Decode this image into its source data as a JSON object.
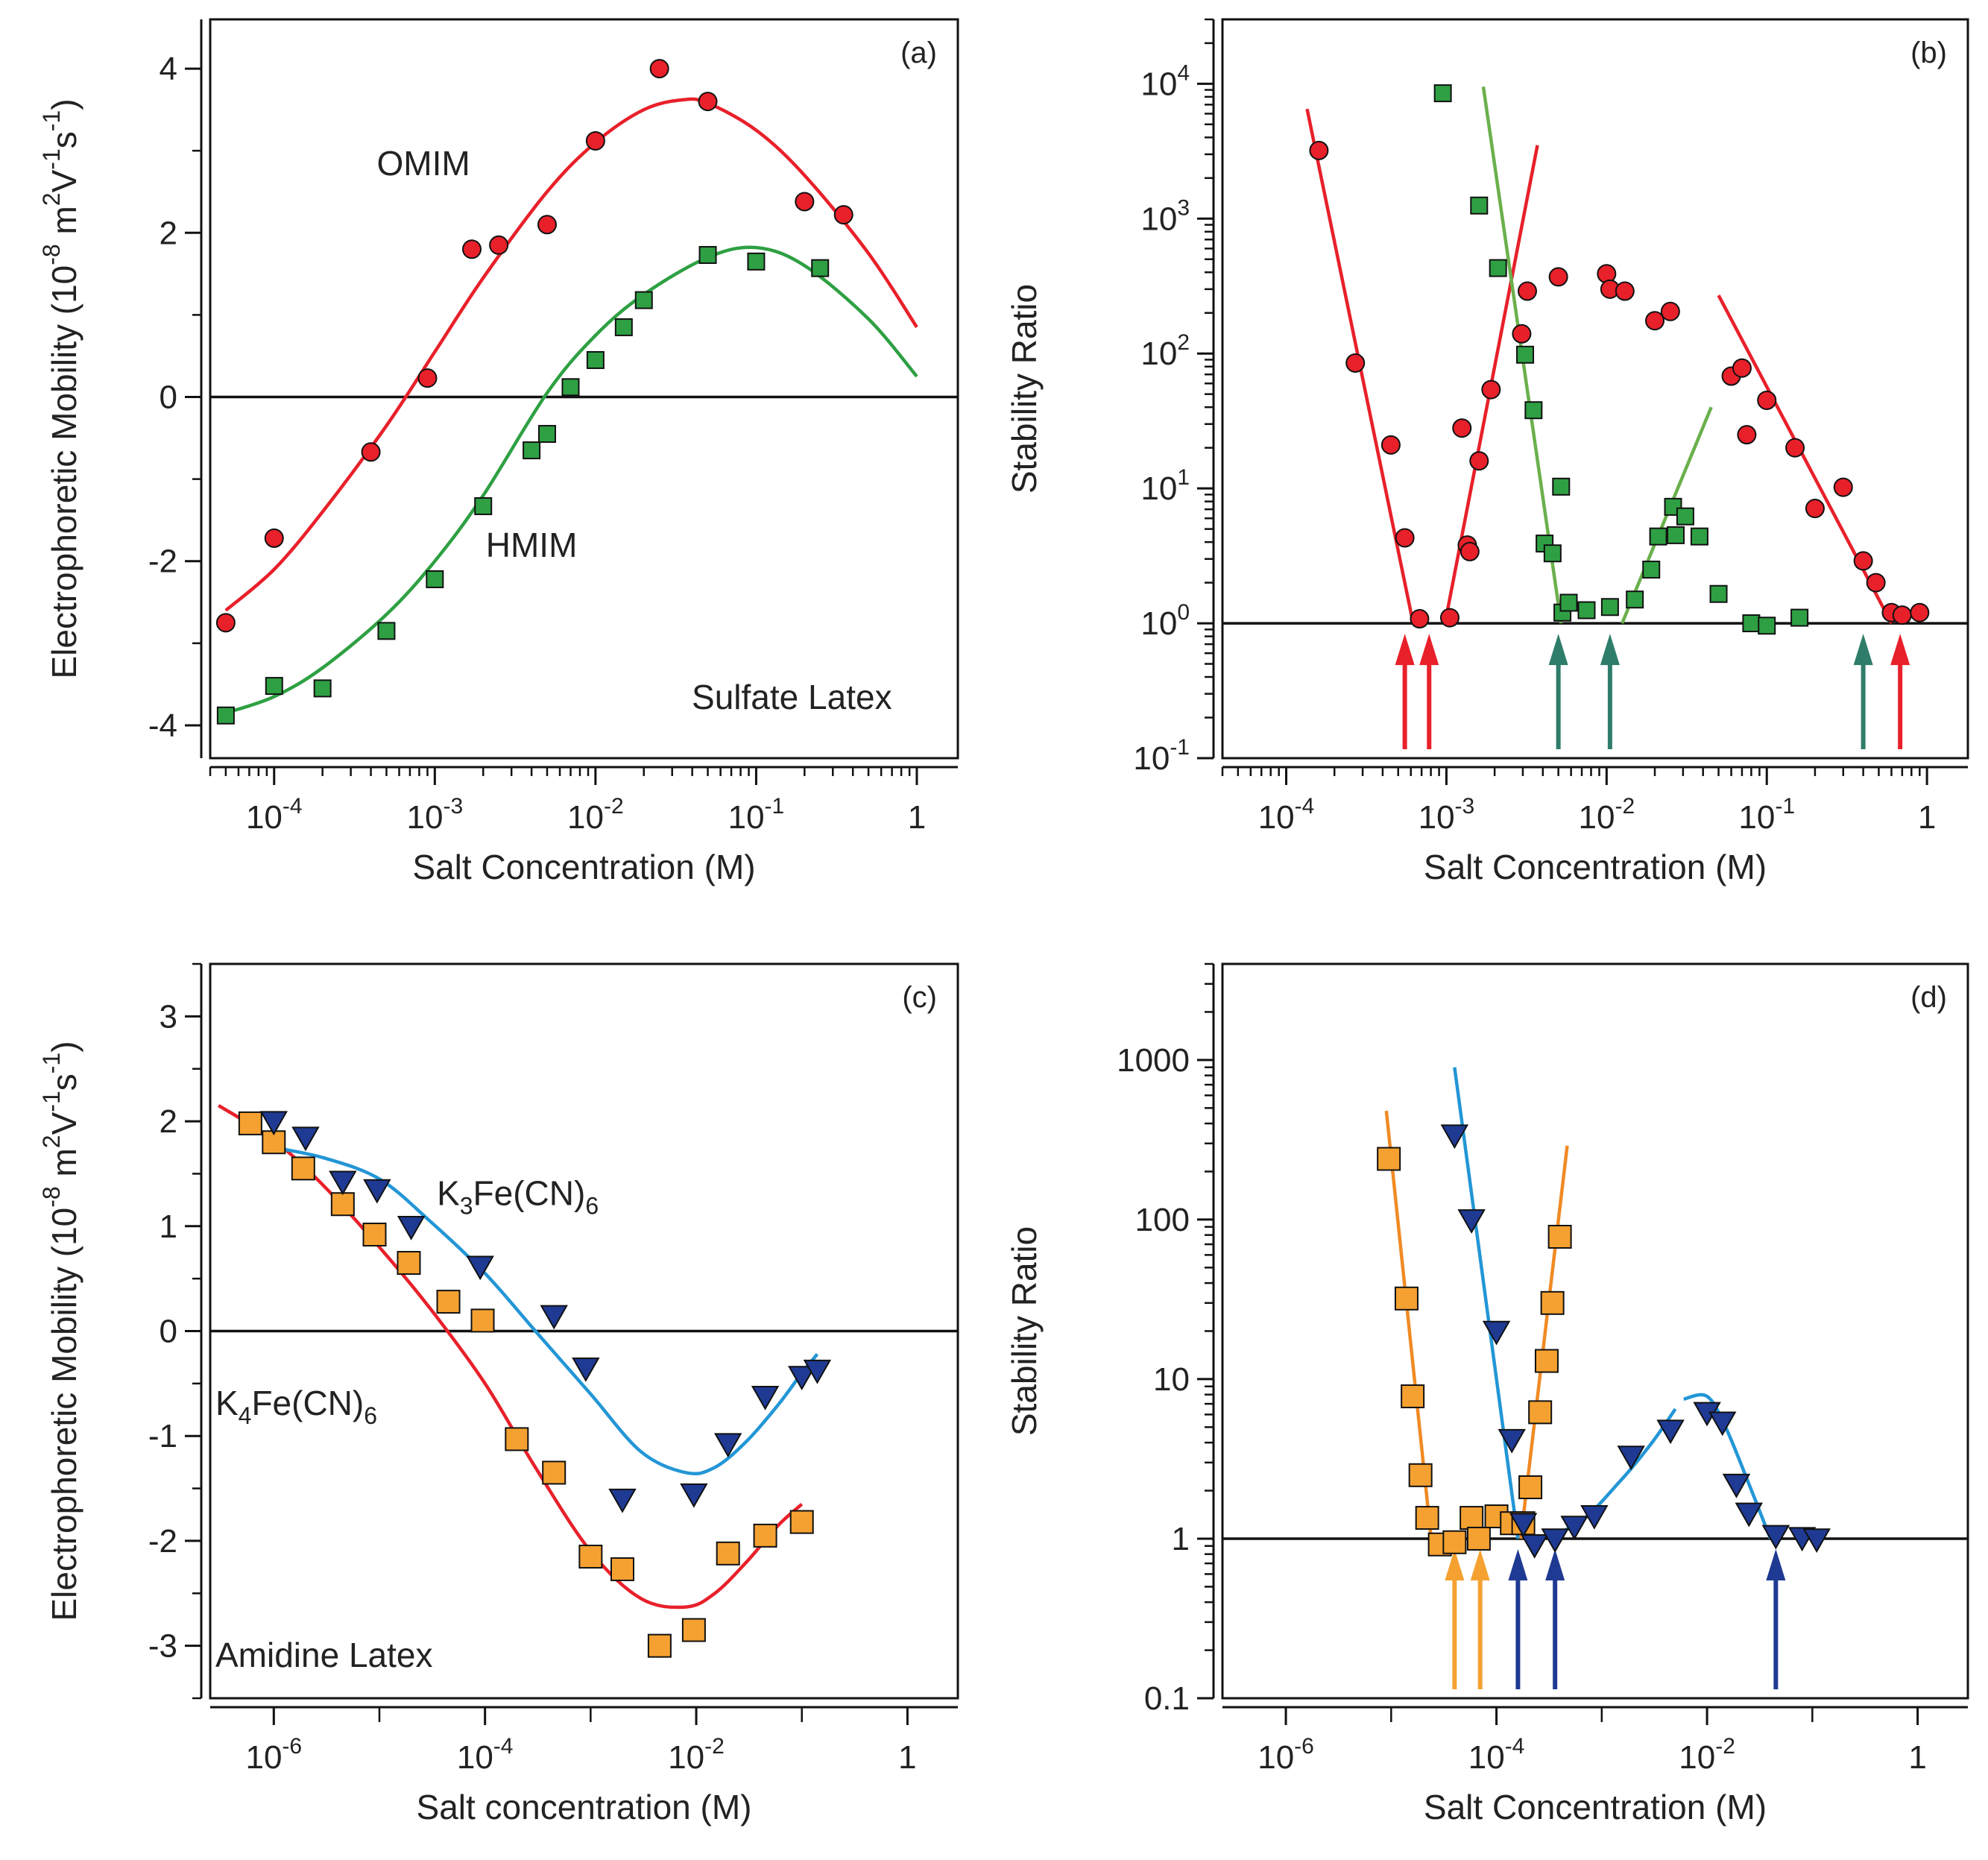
{
  "chart_data": [
    {
      "id": "a",
      "type": "scatter",
      "panel_label": "(a)",
      "xscale": "log",
      "xlim": [
        4e-05,
        1.8
      ],
      "ylim": [
        -4.4,
        4.6
      ],
      "xlabel": "Salt Concentration (M)",
      "ylabel_parts": [
        "Electrophoretic Mobility (10",
        "-8",
        " m",
        "2",
        "V",
        "-1",
        "s",
        "-1",
        ")"
      ],
      "x_ticks": [
        {
          "value": 0.0001,
          "base": "10",
          "exp": "-4"
        },
        {
          "value": 0.001,
          "base": "10",
          "exp": "-3"
        },
        {
          "value": 0.01,
          "base": "10",
          "exp": "-2"
        },
        {
          "value": 0.1,
          "base": "10",
          "exp": "-1"
        },
        {
          "value": 1,
          "base": "1",
          "exp": ""
        }
      ],
      "y_ticks": [
        {
          "value": -4,
          "label": "-4"
        },
        {
          "value": -2,
          "label": "-2"
        },
        {
          "value": 0,
          "label": "0"
        },
        {
          "value": 2,
          "label": "2"
        },
        {
          "value": 4,
          "label": "4"
        }
      ],
      "reference_lines": [
        {
          "axis": "y",
          "value": 0
        }
      ],
      "annotations": [
        {
          "text": "OMIM",
          "x": 0.00085,
          "y": 2.7,
          "anchor": "middle"
        },
        {
          "text": "HMIM",
          "x": 0.004,
          "y": -1.95,
          "anchor": "middle"
        },
        {
          "text": "Sulfate Latex",
          "x": 0.7,
          "y": -3.8,
          "anchor": "end"
        }
      ],
      "series": [
        {
          "name": "OMIM",
          "color": "#e8202a",
          "marker": "circle",
          "x": [
            5e-05,
            0.0001,
            0.0004,
            0.0009,
            0.0017,
            0.0025,
            0.005,
            0.01,
            0.025,
            0.05,
            0.2,
            0.35
          ],
          "y": [
            -2.75,
            -1.72,
            -0.67,
            0.23,
            1.8,
            1.85,
            2.1,
            3.12,
            4.0,
            3.6,
            2.38,
            2.22
          ]
        },
        {
          "name": "HMIM",
          "color": "#2ea043",
          "marker": "square",
          "x": [
            5e-05,
            0.0001,
            0.0002,
            0.0005,
            0.001,
            0.002,
            0.004,
            0.005,
            0.007,
            0.01,
            0.015,
            0.02,
            0.05,
            0.1,
            0.25
          ],
          "y": [
            -3.88,
            -3.52,
            -3.55,
            -2.85,
            -2.22,
            -1.33,
            -0.65,
            -0.45,
            0.12,
            0.45,
            0.85,
            1.18,
            1.73,
            1.65,
            1.57
          ]
        }
      ],
      "fits": [
        {
          "name": "OMIM fit",
          "color": "#e8202a",
          "x": [
            5e-05,
            0.0001,
            0.0002,
            0.0005,
            0.001,
            0.002,
            0.005,
            0.01,
            0.02,
            0.035,
            0.05,
            0.1,
            0.2,
            0.5,
            1
          ],
          "y": [
            -2.6,
            -2.1,
            -1.4,
            -0.35,
            0.55,
            1.45,
            2.5,
            3.1,
            3.5,
            3.62,
            3.58,
            3.25,
            2.7,
            1.75,
            0.85
          ]
        },
        {
          "name": "HMIM fit",
          "color": "#2ea043",
          "x": [
            5e-05,
            0.0001,
            0.0002,
            0.0005,
            0.001,
            0.002,
            0.005,
            0.01,
            0.02,
            0.05,
            0.1,
            0.2,
            0.5,
            1
          ],
          "y": [
            -3.85,
            -3.65,
            -3.3,
            -2.65,
            -2.0,
            -1.2,
            0.05,
            0.75,
            1.25,
            1.7,
            1.82,
            1.6,
            0.95,
            0.25
          ]
        }
      ]
    },
    {
      "id": "b",
      "type": "scatter",
      "panel_label": "(b)",
      "xscale": "log",
      "yscale": "log",
      "xlim": [
        4e-05,
        1.8
      ],
      "ylim": [
        0.1,
        30000
      ],
      "xlabel": "Salt Concentration (M)",
      "ylabel_parts": [
        "Stability Ratio"
      ],
      "x_ticks": [
        {
          "value": 0.0001,
          "base": "10",
          "exp": "-4"
        },
        {
          "value": 0.001,
          "base": "10",
          "exp": "-3"
        },
        {
          "value": 0.01,
          "base": "10",
          "exp": "-2"
        },
        {
          "value": 0.1,
          "base": "10",
          "exp": "-1"
        },
        {
          "value": 1,
          "base": "1",
          "exp": ""
        }
      ],
      "y_ticks": [
        {
          "value": 0.1,
          "base": "10",
          "exp": "-1"
        },
        {
          "value": 1,
          "base": "10",
          "exp": "0"
        },
        {
          "value": 10,
          "base": "10",
          "exp": "1"
        },
        {
          "value": 100,
          "base": "10",
          "exp": "2"
        },
        {
          "value": 1000,
          "base": "10",
          "exp": "3"
        },
        {
          "value": 10000,
          "base": "10",
          "exp": "4"
        }
      ],
      "reference_lines": [
        {
          "axis": "y",
          "value": 1
        }
      ],
      "arrows": [
        {
          "x": 0.00055,
          "color": "#e8202a"
        },
        {
          "x": 0.00078,
          "color": "#e8202a"
        },
        {
          "x": 0.005,
          "color": "#2e7d6a"
        },
        {
          "x": 0.0105,
          "color": "#2e7d6a"
        },
        {
          "x": 0.4,
          "color": "#2e7d6a"
        },
        {
          "x": 0.68,
          "color": "#e8202a"
        }
      ],
      "series": [
        {
          "name": "OMIM",
          "color": "#e8202a",
          "marker": "circle",
          "x": [
            0.00016,
            0.00027,
            0.00045,
            0.00055,
            0.00068,
            0.00105,
            0.00125,
            0.00135,
            0.0014,
            0.0016,
            0.0019,
            0.00295,
            0.0032,
            0.005,
            0.01,
            0.0105,
            0.013,
            0.02,
            0.025,
            0.06,
            0.07,
            0.075,
            0.1,
            0.15,
            0.2,
            0.3,
            0.4,
            0.48,
            0.6,
            0.7,
            0.9
          ],
          "y": [
            3200,
            85,
            21,
            4.3,
            1.08,
            1.1,
            28,
            3.8,
            3.4,
            16,
            54,
            140,
            290,
            370,
            390,
            300,
            290,
            175,
            205,
            68,
            78,
            25,
            45,
            20,
            7.1,
            10.2,
            2.9,
            2.0,
            1.2,
            1.15,
            1.2
          ]
        },
        {
          "name": "HMIM",
          "color": "#2ea043",
          "marker": "square",
          "x": [
            0.00095,
            0.0016,
            0.0021,
            0.0031,
            0.0035,
            0.0041,
            0.0046,
            0.0052,
            0.0053,
            0.0058,
            0.0075,
            0.0105,
            0.015,
            0.019,
            0.021,
            0.026,
            0.027,
            0.031,
            0.038,
            0.05,
            0.08,
            0.1,
            0.16
          ],
          "y": [
            8500,
            1250,
            430,
            98,
            38,
            3.9,
            3.3,
            10.3,
            1.2,
            1.42,
            1.25,
            1.32,
            1.5,
            2.5,
            4.4,
            7.3,
            4.5,
            6.2,
            4.4,
            1.65,
            1.0,
            0.96,
            1.1
          ]
        }
      ],
      "fits": [
        {
          "name": "OMIM fast side",
          "color": "#e8202a",
          "x": [
            0.000135,
            0.00062
          ],
          "y": [
            6500,
            1.0
          ]
        },
        {
          "name": "OMIM reversal side",
          "color": "#e8202a",
          "x": [
            0.00098,
            0.0037
          ],
          "y": [
            1.0,
            3500
          ]
        },
        {
          "name": "OMIM high salt",
          "color": "#e8202a",
          "x": [
            0.05,
            0.6
          ],
          "y": [
            270,
            1.0
          ]
        },
        {
          "name": "HMIM fast side",
          "color": "#6ab04c",
          "x": [
            0.0017,
            0.0052
          ],
          "y": [
            9500,
            1.0
          ]
        },
        {
          "name": "HMIM second rise",
          "color": "#6ab04c",
          "x": [
            0.0125,
            0.045
          ],
          "y": [
            1.0,
            40
          ]
        }
      ]
    },
    {
      "id": "c",
      "type": "scatter",
      "panel_label": "(c)",
      "xscale": "log",
      "xlim": [
        2.5e-07,
        3
      ],
      "ylim": [
        -3.5,
        3.5
      ],
      "xlabel": "Salt concentration (M)",
      "ylabel_parts": [
        "Electrophoretic Mobility (10",
        "-8",
        " m",
        "2",
        "V",
        "-1",
        "s",
        "-1",
        ")"
      ],
      "x_ticks": [
        {
          "value": 1e-06,
          "base": "10",
          "exp": "-6"
        },
        {
          "value": 0.0001,
          "base": "10",
          "exp": "-4"
        },
        {
          "value": 0.01,
          "base": "10",
          "exp": "-2"
        },
        {
          "value": 1,
          "base": "1",
          "exp": ""
        }
      ],
      "x_minor": [
        1e-05,
        0.001,
        0.1
      ],
      "y_ticks": [
        {
          "value": -3,
          "label": "-3"
        },
        {
          "value": -2,
          "label": "-2"
        },
        {
          "value": -1,
          "label": "-1"
        },
        {
          "value": 0,
          "label": "0"
        },
        {
          "value": 1,
          "label": "1"
        },
        {
          "value": 2,
          "label": "2"
        },
        {
          "value": 3,
          "label": "3"
        }
      ],
      "reference_lines": [
        {
          "axis": "y",
          "value": 0
        }
      ],
      "annotations": [
        {
          "text": "K",
          "sub": "3",
          "rest": "Fe(CN)",
          "sub2": "6",
          "x": 3.5e-05,
          "y": 1.2
        },
        {
          "text": "K",
          "sub": "4",
          "rest": "Fe(CN)",
          "sub2": "6",
          "x": 2.8e-07,
          "y": -0.8
        },
        {
          "text": "Amidine Latex",
          "x": 2.8e-07,
          "y": -3.2
        }
      ],
      "series": [
        {
          "name": "K4Fe(CN)6",
          "color": "#f5a131",
          "marker": "square",
          "x": [
            6e-07,
            1e-06,
            1.9e-06,
            4.5e-06,
            9e-06,
            1.9e-05,
            4.5e-05,
            9.5e-05,
            0.0002,
            0.00045,
            0.001,
            0.002,
            0.0045,
            0.0095,
            0.02,
            0.045,
            0.1
          ],
          "y": [
            1.98,
            1.8,
            1.55,
            1.21,
            0.92,
            0.65,
            0.28,
            0.1,
            -1.03,
            -1.35,
            -2.15,
            -2.27,
            -3.0,
            -2.85,
            -2.12,
            -1.95,
            -1.82
          ]
        },
        {
          "name": "K3Fe(CN)6",
          "color": "#1f3a93",
          "marker": "triangle-down",
          "x": [
            1e-06,
            2e-06,
            4.5e-06,
            9.5e-06,
            2e-05,
            9e-05,
            0.00045,
            0.0009,
            0.002,
            0.0095,
            0.02,
            0.045,
            0.1,
            0.14
          ],
          "y": [
            2.0,
            1.85,
            1.43,
            1.35,
            1.0,
            0.62,
            0.15,
            -0.35,
            -1.6,
            -1.55,
            -1.07,
            -0.62,
            -0.43,
            -0.37
          ]
        }
      ],
      "fits": [
        {
          "name": "K4Fe(CN)6 fit",
          "color": "#e8202a",
          "x": [
            3e-07,
            1e-06,
            3e-06,
            1e-05,
            3e-05,
            0.0001,
            0.0003,
            0.001,
            0.003,
            0.008,
            0.015,
            0.03,
            0.06,
            0.1
          ],
          "y": [
            2.15,
            1.82,
            1.38,
            0.8,
            0.22,
            -0.5,
            -1.3,
            -2.1,
            -2.55,
            -2.63,
            -2.5,
            -2.2,
            -1.85,
            -1.65
          ]
        },
        {
          "name": "K3Fe(CN)6 fit",
          "color": "#2396d6",
          "x": [
            1e-06,
            3e-06,
            1e-05,
            3e-05,
            0.0001,
            0.0003,
            0.001,
            0.003,
            0.008,
            0.015,
            0.03,
            0.06,
            0.1,
            0.14
          ],
          "y": [
            1.75,
            1.65,
            1.45,
            1.05,
            0.55,
            0.0,
            -0.6,
            -1.15,
            -1.35,
            -1.3,
            -1.05,
            -0.7,
            -0.4,
            -0.22
          ]
        }
      ]
    },
    {
      "id": "d",
      "type": "scatter",
      "panel_label": "(d)",
      "xscale": "log",
      "yscale": "log",
      "xlim": [
        2.5e-07,
        3
      ],
      "ylim": [
        0.1,
        4000
      ],
      "xlabel": "Salt Concentration (M)",
      "ylabel_parts": [
        "Stability Ratio"
      ],
      "x_ticks": [
        {
          "value": 1e-06,
          "base": "10",
          "exp": "-6"
        },
        {
          "value": 0.0001,
          "base": "10",
          "exp": "-4"
        },
        {
          "value": 0.01,
          "base": "10",
          "exp": "-2"
        },
        {
          "value": 1,
          "base": "1",
          "exp": ""
        }
      ],
      "x_minor": [
        1e-05,
        0.001,
        0.1
      ],
      "y_ticks": [
        {
          "value": 0.1,
          "label": "0.1"
        },
        {
          "value": 1,
          "label": "1"
        },
        {
          "value": 10,
          "label": "10"
        },
        {
          "value": 100,
          "label": "100"
        },
        {
          "value": 1000,
          "label": "1000"
        }
      ],
      "reference_lines": [
        {
          "axis": "y",
          "value": 1
        }
      ],
      "arrows": [
        {
          "x": 4e-05,
          "color": "#f5a131"
        },
        {
          "x": 7e-05,
          "color": "#f5a131"
        },
        {
          "x": 0.00016,
          "color": "#1f3a93"
        },
        {
          "x": 0.00036,
          "color": "#1f3a93"
        },
        {
          "x": 0.045,
          "color": "#1f3a93"
        }
      ],
      "series": [
        {
          "name": "K4Fe(CN)6",
          "color": "#f5a131",
          "marker": "square",
          "x": [
            9.5e-06,
            1.4e-05,
            1.6e-05,
            1.9e-05,
            2.2e-05,
            2.9e-05,
            4e-05,
            5.8e-05,
            6.8e-05,
            0.0001,
            0.00014,
            0.00018,
            0.00021,
            0.00026,
            0.0003,
            0.00034,
            0.0004
          ],
          "y": [
            240,
            32,
            7.8,
            2.5,
            1.35,
            0.92,
            0.95,
            1.35,
            1.0,
            1.38,
            1.25,
            1.25,
            2.1,
            6.2,
            13,
            30,
            78
          ]
        },
        {
          "name": "K3Fe(CN)6",
          "color": "#1f3a93",
          "marker": "triangle-down",
          "x": [
            4e-05,
            5.8e-05,
            0.0001,
            0.00014,
            0.00018,
            0.00023,
            0.00036,
            0.00055,
            0.00085,
            0.0019,
            0.0045,
            0.01,
            0.014,
            0.019,
            0.025,
            0.045,
            0.08,
            0.11
          ],
          "y": [
            340,
            100,
            20,
            4.2,
            1.25,
            0.92,
            1.0,
            1.2,
            1.4,
            3.3,
            4.8,
            6.2,
            5.4,
            2.2,
            1.45,
            1.05,
            1.02,
            1.0
          ]
        }
      ],
      "fits": [
        {
          "name": "K4Fe(CN)6 fast side",
          "color": "#f08a24",
          "x": [
            9e-06,
            2.4e-05
          ],
          "y": [
            480,
            1.0
          ]
        },
        {
          "name": "K4Fe(CN)6 reversal side",
          "color": "#f08a24",
          "x": [
            0.00017,
            0.00047
          ],
          "y": [
            1.0,
            290
          ]
        },
        {
          "name": "K3Fe(CN)6 fast side",
          "color": "#2396d6",
          "x": [
            4e-05,
            0.00016
          ],
          "y": [
            900,
            1.0
          ]
        },
        {
          "name": "K3Fe(CN)6 second rise",
          "color": "#2396d6",
          "x": [
            0.00024,
            0.0006,
            0.0015,
            0.003,
            0.005
          ],
          "y": [
            1.0,
            1.25,
            2.3,
            4.0,
            6.5
          ]
        },
        {
          "name": "K3Fe(CN)6 high salt",
          "color": "#2396d6",
          "x": [
            0.006,
            0.01,
            0.015,
            0.025,
            0.04
          ],
          "y": [
            7.5,
            7.8,
            5.0,
            2.2,
            1.0
          ]
        }
      ]
    }
  ]
}
